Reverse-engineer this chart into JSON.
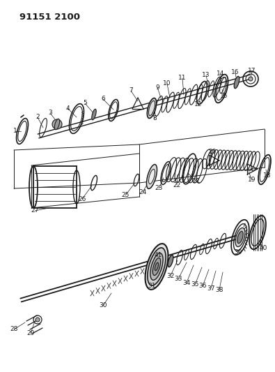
{
  "title": "91151 2100",
  "bg_color": "#ffffff",
  "line_color": "#1a1a1a",
  "fig_width": 3.95,
  "fig_height": 5.33,
  "dpi": 100
}
